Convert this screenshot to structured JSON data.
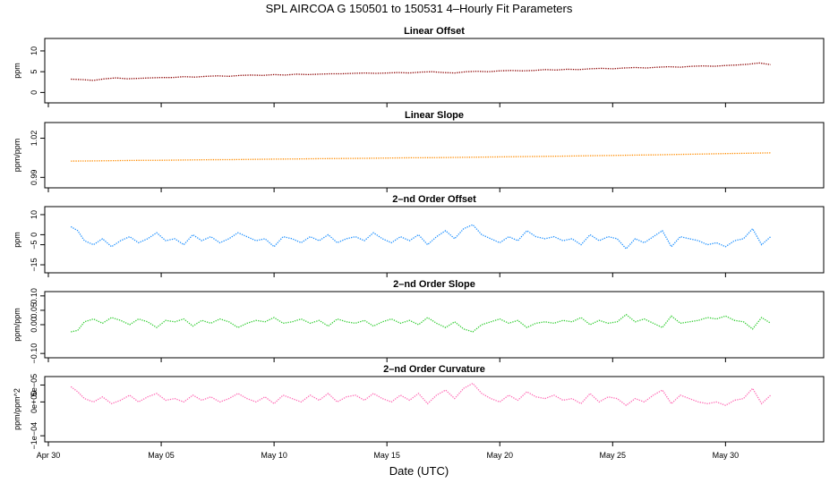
{
  "chart_data": {
    "type": "line",
    "title": "SPL   AIRCOA G   150501 to 150531   4–Hourly Fit Parameters",
    "xlabel": "Date (UTC)",
    "x_range_days": [
      0,
      33
    ],
    "x_ticks": [
      {
        "label": "Apr 30",
        "day": 0
      },
      {
        "label": "May 05",
        "day": 5
      },
      {
        "label": "May 10",
        "day": 10
      },
      {
        "label": "May 15",
        "day": 15
      },
      {
        "label": "May 20",
        "day": 20
      },
      {
        "label": "May 25",
        "day": 25
      },
      {
        "label": "May 30",
        "day": 30
      }
    ],
    "panels": [
      {
        "title": "Linear Offset",
        "ylabel": "ppm",
        "ylim": [
          -2.5,
          13
        ],
        "yticks": [
          {
            "label": "0",
            "value": 0
          },
          {
            "label": "5",
            "value": 5
          },
          {
            "label": "10",
            "value": 10
          }
        ],
        "color": "#8b0000",
        "series": {
          "x": [
            1.0,
            1.5,
            2.0,
            2.5,
            3.0,
            3.5,
            4.0,
            4.5,
            5.0,
            5.5,
            6.0,
            6.5,
            7.0,
            7.5,
            8.0,
            8.5,
            9.0,
            9.5,
            10.0,
            10.5,
            11.0,
            11.5,
            12.0,
            12.5,
            13.0,
            13.5,
            14.0,
            14.5,
            15.0,
            15.5,
            16.0,
            16.5,
            17.0,
            17.5,
            18.0,
            18.5,
            19.0,
            19.5,
            20.0,
            20.5,
            21.0,
            21.5,
            22.0,
            22.5,
            23.0,
            23.5,
            24.0,
            24.5,
            25.0,
            25.5,
            26.0,
            26.5,
            27.0,
            27.5,
            28.0,
            28.5,
            29.0,
            29.5,
            30.0,
            30.5,
            31.0,
            31.5,
            32.0
          ],
          "y": [
            3.2,
            3.1,
            2.9,
            3.3,
            3.5,
            3.3,
            3.4,
            3.5,
            3.6,
            3.6,
            3.8,
            3.7,
            3.9,
            4.0,
            3.9,
            4.1,
            4.2,
            4.1,
            4.3,
            4.2,
            4.4,
            4.3,
            4.4,
            4.5,
            4.5,
            4.6,
            4.7,
            4.6,
            4.7,
            4.8,
            4.7,
            4.9,
            5.0,
            4.8,
            4.7,
            5.0,
            5.1,
            5.0,
            5.2,
            5.3,
            5.2,
            5.3,
            5.5,
            5.4,
            5.6,
            5.5,
            5.7,
            5.8,
            5.7,
            5.9,
            6.0,
            5.9,
            6.1,
            6.2,
            6.1,
            6.3,
            6.4,
            6.3,
            6.5,
            6.6,
            6.8,
            7.1,
            6.7
          ]
        }
      },
      {
        "title": "Linear Slope",
        "ylabel": "ppm/ppm",
        "ylim": [
          0.982,
          1.032
        ],
        "yticks": [
          {
            "label": "0.99",
            "value": 0.99
          },
          {
            "label": "1.02",
            "value": 1.02
          }
        ],
        "color": "#ff8c00",
        "series": {
          "x": [
            1.0,
            2.0,
            3.0,
            4.0,
            5.0,
            6.0,
            7.0,
            8.0,
            9.0,
            10.0,
            11.0,
            12.0,
            13.0,
            14.0,
            15.0,
            16.0,
            17.0,
            18.0,
            19.0,
            20.0,
            21.0,
            22.0,
            23.0,
            24.0,
            25.0,
            26.0,
            27.0,
            28.0,
            29.0,
            30.0,
            31.0,
            32.0
          ],
          "y": [
            1.0025,
            1.0026,
            1.0028,
            1.003,
            1.0031,
            1.0033,
            1.0035,
            1.0036,
            1.0038,
            1.004,
            1.0041,
            1.0043,
            1.0045,
            1.0046,
            1.0048,
            1.005,
            1.0051,
            1.0053,
            1.0055,
            1.0057,
            1.0059,
            1.0061,
            1.0063,
            1.0066,
            1.0068,
            1.0071,
            1.0073,
            1.0076,
            1.0079,
            1.0082,
            1.0085,
            1.0088
          ]
        }
      },
      {
        "title": "2–nd Order Offset",
        "ylabel": "ppm",
        "ylim": [
          -19,
          14
        ],
        "yticks": [
          {
            "label": "−15",
            "value": -15
          },
          {
            "label": "−5",
            "value": -5
          },
          {
            "label": "0",
            "value": 0
          },
          {
            "label": "10",
            "value": 10
          }
        ],
        "color": "#1e90ff",
        "series": {
          "x": [
            1.0,
            1.3,
            1.6,
            2.0,
            2.4,
            2.8,
            3.2,
            3.6,
            4.0,
            4.4,
            4.8,
            5.2,
            5.6,
            6.0,
            6.4,
            6.8,
            7.2,
            7.6,
            8.0,
            8.4,
            8.8,
            9.2,
            9.6,
            10.0,
            10.4,
            10.8,
            11.2,
            11.6,
            12.0,
            12.4,
            12.8,
            13.2,
            13.6,
            14.0,
            14.4,
            14.8,
            15.2,
            15.6,
            16.0,
            16.4,
            16.8,
            17.2,
            17.6,
            18.0,
            18.4,
            18.8,
            19.2,
            19.6,
            20.0,
            20.4,
            20.8,
            21.2,
            21.6,
            22.0,
            22.4,
            22.8,
            23.2,
            23.6,
            24.0,
            24.4,
            24.8,
            25.2,
            25.6,
            26.0,
            26.4,
            26.8,
            27.2,
            27.6,
            28.0,
            28.4,
            28.8,
            29.2,
            29.6,
            30.0,
            30.4,
            30.8,
            31.2,
            31.6,
            32.0
          ],
          "y": [
            4,
            2,
            -3,
            -5,
            -2,
            -6,
            -3,
            -1,
            -4,
            -2,
            1,
            -3,
            -2,
            -5,
            0,
            -3,
            -1,
            -4,
            -2,
            1,
            -1,
            -3,
            -2,
            -6,
            -1,
            -2,
            -4,
            -1,
            -3,
            0,
            -4,
            -2,
            -1,
            -3,
            1,
            -2,
            -4,
            -1,
            -3,
            0,
            -5,
            -1,
            2,
            -2,
            3,
            5,
            0,
            -2,
            -4,
            -1,
            -3,
            2,
            -1,
            -2,
            -1,
            -3,
            -2,
            -5,
            0,
            -3,
            -1,
            -2,
            -7,
            -2,
            -4,
            -1,
            2,
            -6,
            -1,
            -2,
            -3,
            -5,
            -4,
            -6,
            -3,
            -2,
            3,
            -5,
            -1
          ]
        }
      },
      {
        "title": "2–nd Order Slope",
        "ylabel": "ppm/ppm",
        "ylim": [
          -0.115,
          0.115
        ],
        "yticks": [
          {
            "label": "−0.10",
            "value": -0.1
          },
          {
            "label": "0.00",
            "value": 0.0
          },
          {
            "label": "0.05",
            "value": 0.05
          },
          {
            "label": "0.10",
            "value": 0.1
          }
        ],
        "color": "#32cd32",
        "series": {
          "x": [
            1.0,
            1.3,
            1.6,
            2.0,
            2.4,
            2.8,
            3.2,
            3.6,
            4.0,
            4.4,
            4.8,
            5.2,
            5.6,
            6.0,
            6.4,
            6.8,
            7.2,
            7.6,
            8.0,
            8.4,
            8.8,
            9.2,
            9.6,
            10.0,
            10.4,
            10.8,
            11.2,
            11.6,
            12.0,
            12.4,
            12.8,
            13.2,
            13.6,
            14.0,
            14.4,
            14.8,
            15.2,
            15.6,
            16.0,
            16.4,
            16.8,
            17.2,
            17.6,
            18.0,
            18.4,
            18.8,
            19.2,
            19.6,
            20.0,
            20.4,
            20.8,
            21.2,
            21.6,
            22.0,
            22.4,
            22.8,
            23.2,
            23.6,
            24.0,
            24.4,
            24.8,
            25.2,
            25.6,
            26.0,
            26.4,
            26.8,
            27.2,
            27.6,
            28.0,
            28.4,
            28.8,
            29.2,
            29.6,
            30.0,
            30.4,
            30.8,
            31.2,
            31.6,
            32.0
          ],
          "y": [
            -0.025,
            -0.02,
            0.01,
            0.02,
            0.005,
            0.025,
            0.015,
            0.0,
            0.02,
            0.01,
            -0.01,
            0.015,
            0.01,
            0.02,
            -0.005,
            0.015,
            0.005,
            0.02,
            0.01,
            -0.01,
            0.005,
            0.015,
            0.01,
            0.025,
            0.005,
            0.01,
            0.02,
            0.005,
            0.015,
            -0.005,
            0.02,
            0.01,
            0.005,
            0.015,
            -0.005,
            0.01,
            0.02,
            0.005,
            0.015,
            0.0,
            0.025,
            0.005,
            -0.01,
            0.01,
            -0.015,
            -0.025,
            0.0,
            0.01,
            0.02,
            0.005,
            0.015,
            -0.01,
            0.005,
            0.01,
            0.005,
            0.015,
            0.01,
            0.025,
            0.0,
            0.015,
            0.005,
            0.01,
            0.035,
            0.01,
            0.02,
            0.005,
            -0.01,
            0.03,
            0.005,
            0.01,
            0.015,
            0.025,
            0.02,
            0.03,
            0.015,
            0.01,
            -0.015,
            0.025,
            0.005
          ]
        }
      },
      {
        "title": "2–nd Order Curvature",
        "ylabel": "ppm/ppm^2",
        "ylim": [
          -0.000118,
          7.5e-05
        ],
        "yticks": [
          {
            "label": "−1e−04",
            "value": -0.0001
          },
          {
            "label": "0e+00",
            "value": 0
          },
          {
            "label": "5e−05",
            "value": 5e-05
          }
        ],
        "color": "#ff69b4",
        "series": {
          "x": [
            1.0,
            1.3,
            1.6,
            2.0,
            2.4,
            2.8,
            3.2,
            3.6,
            4.0,
            4.4,
            4.8,
            5.2,
            5.6,
            6.0,
            6.4,
            6.8,
            7.2,
            7.6,
            8.0,
            8.4,
            8.8,
            9.2,
            9.6,
            10.0,
            10.4,
            10.8,
            11.2,
            11.6,
            12.0,
            12.4,
            12.8,
            13.2,
            13.6,
            14.0,
            14.4,
            14.8,
            15.2,
            15.6,
            16.0,
            16.4,
            16.8,
            17.2,
            17.6,
            18.0,
            18.4,
            18.8,
            19.2,
            19.6,
            20.0,
            20.4,
            20.8,
            21.2,
            21.6,
            22.0,
            22.4,
            22.8,
            23.2,
            23.6,
            24.0,
            24.4,
            24.8,
            25.2,
            25.6,
            26.0,
            26.4,
            26.8,
            27.2,
            27.6,
            28.0,
            28.4,
            28.8,
            29.2,
            29.6,
            30.0,
            30.4,
            30.8,
            31.2,
            31.6,
            32.0
          ],
          "y": [
            4.5e-05,
            3e-05,
            1e-05,
            0,
            1.5e-05,
            -5e-06,
            5e-06,
            2e-05,
            0,
            1.5e-05,
            2.5e-05,
            5e-06,
            1e-05,
            0,
            2e-05,
            5e-06,
            1.5e-05,
            0,
            1e-05,
            2.5e-05,
            1e-05,
            0,
            1.5e-05,
            -5e-06,
            2e-05,
            1e-05,
            0,
            2e-05,
            5e-06,
            2.5e-05,
            0,
            1.5e-05,
            2e-05,
            5e-06,
            2.5e-05,
            1e-05,
            0,
            2e-05,
            5e-06,
            2.5e-05,
            -5e-06,
            2e-05,
            3.5e-05,
            1e-05,
            4e-05,
            5.5e-05,
            2.5e-05,
            1e-05,
            0,
            2e-05,
            5e-06,
            3e-05,
            1.5e-05,
            1e-05,
            2e-05,
            5e-06,
            1e-05,
            -5e-06,
            2.5e-05,
            0,
            1.5e-05,
            1e-05,
            -1e-05,
            1e-05,
            0,
            2e-05,
            3.5e-05,
            -5e-06,
            2e-05,
            1e-05,
            0,
            -5e-06,
            0,
            -1e-05,
            5e-06,
            1e-05,
            4e-05,
            -5e-06,
            2e-05
          ]
        }
      }
    ]
  }
}
